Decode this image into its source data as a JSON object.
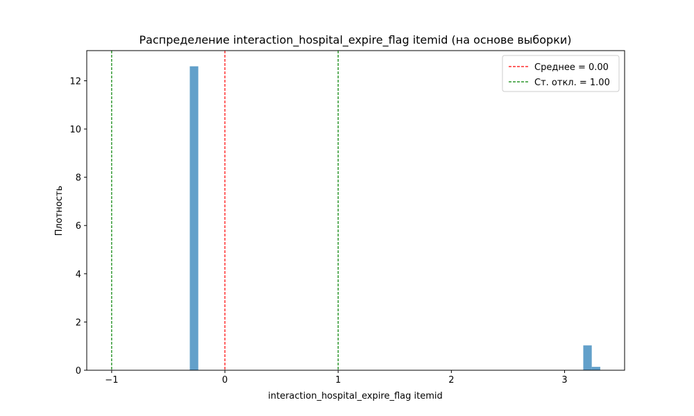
{
  "chart_data": {
    "type": "bar",
    "title": "Распределение interaction_hospital_expire_flag itemid (на основе выборки)",
    "xlabel": "interaction_hospital_expire_flag itemid",
    "ylabel": "Плотность",
    "xlim": [
      -1.22,
      3.53
    ],
    "ylim": [
      0,
      13.25
    ],
    "xticks": [
      -1,
      0,
      1,
      2,
      3
    ],
    "xtick_labels": [
      "−1",
      "0",
      "1",
      "2",
      "3"
    ],
    "yticks": [
      0,
      2,
      4,
      6,
      8,
      10,
      12
    ],
    "ytick_labels": [
      "0",
      "2",
      "4",
      "6",
      "8",
      "10",
      "12"
    ],
    "bar_color": "#1f77b4",
    "bar_opacity": 0.7,
    "bars": [
      {
        "x0": -0.31,
        "x1": -0.235,
        "value": 12.6
      },
      {
        "x0": 3.165,
        "x1": 3.24,
        "value": 1.03
      },
      {
        "x0": 3.24,
        "x1": 3.315,
        "value": 0.14
      }
    ],
    "reference_lines": [
      {
        "x": 0,
        "color": "#ff0000",
        "legend": "Среднее = 0.00"
      },
      {
        "x": -1,
        "color": "#008000",
        "legend": "Ст. откл. = 1.00"
      },
      {
        "x": 1,
        "color": "#008000",
        "legend": ""
      }
    ],
    "legend": {
      "position": "top-right",
      "entries": [
        {
          "label": "Среднее = 0.00",
          "color": "#ff0000"
        },
        {
          "label": "Ст. откл. = 1.00",
          "color": "#008000"
        }
      ]
    },
    "grid": false
  }
}
